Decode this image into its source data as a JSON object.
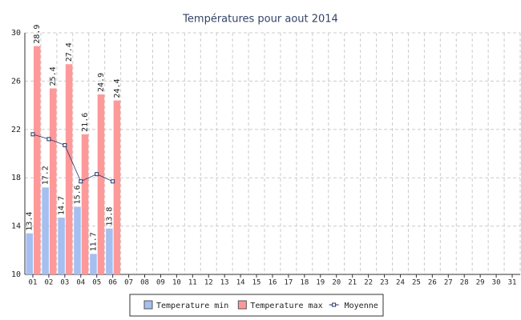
{
  "chart_data": {
    "type": "bar",
    "title": "Températures pour aout 2014",
    "categories": [
      "01",
      "02",
      "03",
      "04",
      "05",
      "06",
      "07",
      "08",
      "09",
      "10",
      "11",
      "12",
      "13",
      "14",
      "15",
      "16",
      "17",
      "18",
      "19",
      "20",
      "21",
      "22",
      "23",
      "24",
      "25",
      "26",
      "27",
      "28",
      "29",
      "30",
      "31"
    ],
    "series": [
      {
        "name": "Temperature min",
        "color": "#a4bff0",
        "values": [
          13.4,
          17.2,
          14.7,
          15.6,
          11.7,
          13.8,
          null,
          null,
          null,
          null,
          null,
          null,
          null,
          null,
          null,
          null,
          null,
          null,
          null,
          null,
          null,
          null,
          null,
          null,
          null,
          null,
          null,
          null,
          null,
          null,
          null
        ]
      },
      {
        "name": "Temperature max",
        "color": "#ff9999",
        "values": [
          28.9,
          25.4,
          27.4,
          21.6,
          24.9,
          24.4,
          null,
          null,
          null,
          null,
          null,
          null,
          null,
          null,
          null,
          null,
          null,
          null,
          null,
          null,
          null,
          null,
          null,
          null,
          null,
          null,
          null,
          null,
          null,
          null,
          null
        ]
      },
      {
        "name": "Moyenne",
        "type": "line",
        "color": "#223366",
        "values": [
          21.6,
          21.2,
          20.7,
          17.7,
          18.3,
          17.7,
          null,
          null,
          null,
          null,
          null,
          null,
          null,
          null,
          null,
          null,
          null,
          null,
          null,
          null,
          null,
          null,
          null,
          null,
          null,
          null,
          null,
          null,
          null,
          null,
          null
        ]
      }
    ],
    "ylim": [
      10,
      30
    ],
    "yticks": [
      10,
      14,
      18,
      22,
      26,
      30
    ],
    "grid": true,
    "legend": "bottom"
  }
}
